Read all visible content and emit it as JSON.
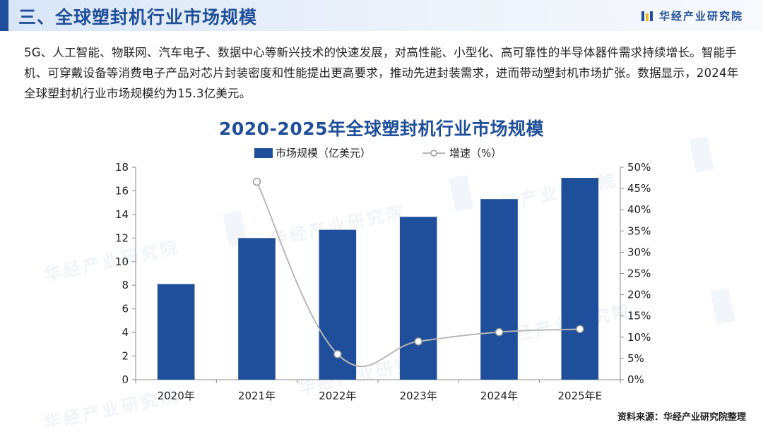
{
  "header": {
    "title": "三、全球塑封机行业市场规模",
    "brand": "华经产业研究院",
    "brand_color": "#1f4f9a",
    "logo_icon": "book-logo-icon"
  },
  "paragraph": "5G、人工智能、物联网、汽车电子、数据中心等新兴技术的快速发展，对高性能、小型化、高可靠性的半导体器件需求持续增长。智能手机、可穿戴设备等消费电子产品对芯片封装密度和性能提出更高要求，推动先进封装需求，进而带动塑封机市场扩张。数据显示，2024年全球塑封机行业市场规模约为15.3亿美元。",
  "watermark_text": "华经产业研究院",
  "source": "资料来源：华经产业研究院整理",
  "chart_data": {
    "type": "bar",
    "title": "2020-2025年全球塑封机行业市场规模",
    "categories": [
      "2020年",
      "2021年",
      "2022年",
      "2023年",
      "2024年",
      "2025年E"
    ],
    "series": [
      {
        "name": "市场规模（亿美元）",
        "type": "bar",
        "axis": "left",
        "color": "#1f4f9a",
        "values": [
          8.1,
          12.0,
          12.7,
          13.8,
          15.3,
          17.1
        ]
      },
      {
        "name": "增速（%）",
        "type": "line",
        "axis": "right",
        "color": "#b8b8b8",
        "values": [
          null,
          46.6,
          6.0,
          9.0,
          11.2,
          11.9
        ]
      }
    ],
    "y_left": {
      "min": 0,
      "max": 18,
      "ticks": [
        "0",
        "2",
        "4",
        "6",
        "8",
        "10",
        "12",
        "14",
        "16",
        "18"
      ]
    },
    "y_right": {
      "min": 0,
      "max": 50,
      "ticks": [
        "0%",
        "5%",
        "10%",
        "15%",
        "20%",
        "25%",
        "30%",
        "35%",
        "40%",
        "45%",
        "50%"
      ]
    },
    "legend_position": "top-center",
    "grid": false
  }
}
